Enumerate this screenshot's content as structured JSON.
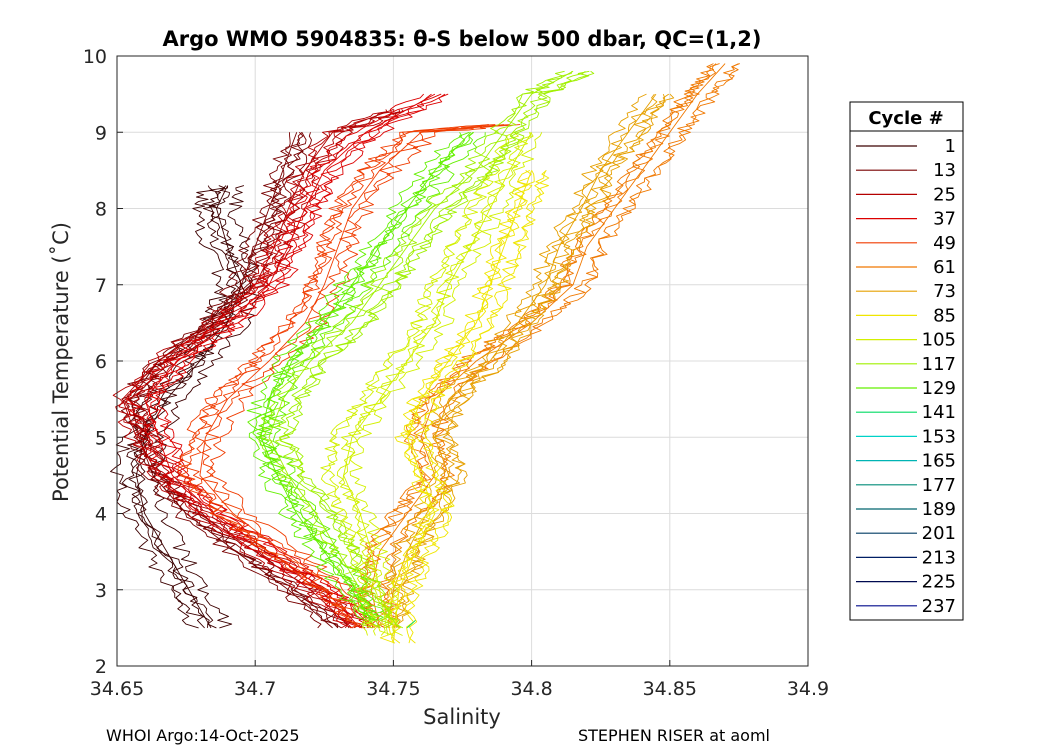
{
  "chart_data": {
    "type": "line",
    "title": "Argo WMO 5904835: θ-S below 500 dbar,  QC=(1,2)",
    "xlabel": "Salinity",
    "ylabel": "Potential Temperature (˚C)",
    "xlim": [
      34.65,
      34.9
    ],
    "ylim": [
      2,
      10
    ],
    "xticks": [
      "34.65",
      "34.7",
      "34.75",
      "34.8",
      "34.85",
      "34.9"
    ],
    "yticks": [
      "2",
      "3",
      "4",
      "5",
      "6",
      "7",
      "8",
      "9",
      "10"
    ],
    "grid": true,
    "legend_title": "Cycle #",
    "legend_position": "right",
    "series": [
      {
        "name": "1",
        "color": "#3c0000",
        "points": [
          [
            34.684,
            2.5
          ],
          [
            34.676,
            3.0
          ],
          [
            34.668,
            3.5
          ],
          [
            34.66,
            4.0
          ],
          [
            34.657,
            4.5
          ],
          [
            34.66,
            5.0
          ],
          [
            34.668,
            5.5
          ],
          [
            34.68,
            6.0
          ],
          [
            34.69,
            6.5
          ],
          [
            34.695,
            7.0
          ],
          [
            34.69,
            7.5
          ],
          [
            34.686,
            8.0
          ],
          [
            34.69,
            8.3
          ]
        ]
      },
      {
        "name": "13",
        "color": "#780000",
        "points": [
          [
            34.728,
            2.5
          ],
          [
            34.712,
            3.0
          ],
          [
            34.693,
            3.5
          ],
          [
            34.675,
            4.0
          ],
          [
            34.663,
            4.5
          ],
          [
            34.658,
            5.0
          ],
          [
            34.655,
            5.5
          ],
          [
            34.665,
            6.0
          ],
          [
            34.683,
            6.5
          ],
          [
            34.695,
            7.0
          ],
          [
            34.7,
            7.5
          ],
          [
            34.705,
            8.0
          ],
          [
            34.71,
            8.5
          ],
          [
            34.715,
            9.0
          ]
        ]
      },
      {
        "name": "25",
        "color": "#b40000",
        "points": [
          [
            34.735,
            2.5
          ],
          [
            34.72,
            3.0
          ],
          [
            34.7,
            3.5
          ],
          [
            34.68,
            4.0
          ],
          [
            34.665,
            4.5
          ],
          [
            34.657,
            5.0
          ],
          [
            34.652,
            5.5
          ],
          [
            34.665,
            6.0
          ],
          [
            34.685,
            6.5
          ],
          [
            34.7,
            7.0
          ],
          [
            34.707,
            7.5
          ],
          [
            34.712,
            8.0
          ],
          [
            34.718,
            8.5
          ],
          [
            34.728,
            9.0
          ],
          [
            34.75,
            9.3
          ]
        ]
      },
      {
        "name": "37",
        "color": "#dc0000",
        "points": [
          [
            34.738,
            2.5
          ],
          [
            34.725,
            3.0
          ],
          [
            34.705,
            3.5
          ],
          [
            34.685,
            4.0
          ],
          [
            34.67,
            4.5
          ],
          [
            34.665,
            5.0
          ],
          [
            34.66,
            5.5
          ],
          [
            34.672,
            6.0
          ],
          [
            34.69,
            6.5
          ],
          [
            34.705,
            7.0
          ],
          [
            34.712,
            7.5
          ],
          [
            34.718,
            8.0
          ],
          [
            34.725,
            8.5
          ],
          [
            34.74,
            9.0
          ],
          [
            34.765,
            9.5
          ]
        ]
      },
      {
        "name": "49",
        "color": "#f03c00",
        "points": [
          [
            34.742,
            2.5
          ],
          [
            34.73,
            3.0
          ],
          [
            34.71,
            3.5
          ],
          [
            34.692,
            4.0
          ],
          [
            34.68,
            4.5
          ],
          [
            34.682,
            5.0
          ],
          [
            34.69,
            5.5
          ],
          [
            34.705,
            6.0
          ],
          [
            34.718,
            6.5
          ],
          [
            34.725,
            7.0
          ],
          [
            34.73,
            7.5
          ],
          [
            34.735,
            8.0
          ],
          [
            34.745,
            8.5
          ],
          [
            34.76,
            9.0
          ],
          [
            34.79,
            9.1
          ]
        ]
      },
      {
        "name": "61",
        "color": "#f07800",
        "points": [
          [
            34.745,
            2.5
          ],
          [
            34.742,
            3.0
          ],
          [
            34.745,
            3.5
          ],
          [
            34.755,
            4.0
          ],
          [
            34.765,
            4.5
          ],
          [
            34.76,
            5.0
          ],
          [
            34.765,
            5.5
          ],
          [
            34.78,
            6.0
          ],
          [
            34.8,
            6.5
          ],
          [
            34.815,
            7.0
          ],
          [
            34.82,
            7.5
          ],
          [
            34.83,
            8.0
          ],
          [
            34.84,
            8.5
          ],
          [
            34.85,
            9.0
          ],
          [
            34.86,
            9.5
          ],
          [
            34.87,
            9.9
          ]
        ]
      },
      {
        "name": "73",
        "color": "#e6a000",
        "points": [
          [
            34.748,
            2.5
          ],
          [
            34.75,
            3.0
          ],
          [
            34.755,
            3.5
          ],
          [
            34.762,
            4.0
          ],
          [
            34.77,
            4.5
          ],
          [
            34.765,
            5.0
          ],
          [
            34.77,
            5.5
          ],
          [
            34.785,
            6.0
          ],
          [
            34.795,
            6.5
          ],
          [
            34.805,
            7.0
          ],
          [
            34.81,
            7.5
          ],
          [
            34.818,
            8.0
          ],
          [
            34.825,
            8.5
          ],
          [
            34.835,
            9.0
          ],
          [
            34.845,
            9.5
          ]
        ]
      },
      {
        "name": "85",
        "color": "#f0e600",
        "points": [
          [
            34.75,
            2.3
          ],
          [
            34.752,
            3.0
          ],
          [
            34.758,
            3.5
          ],
          [
            34.765,
            4.0
          ],
          [
            34.76,
            4.5
          ],
          [
            34.755,
            5.0
          ],
          [
            34.76,
            5.5
          ],
          [
            34.77,
            6.0
          ],
          [
            34.78,
            6.5
          ],
          [
            34.785,
            7.0
          ],
          [
            34.79,
            7.5
          ],
          [
            34.795,
            8.0
          ],
          [
            34.8,
            8.5
          ]
        ]
      },
      {
        "name": "105",
        "color": "#d2f000",
        "points": [
          [
            34.748,
            2.4
          ],
          [
            34.745,
            3.0
          ],
          [
            34.742,
            3.5
          ],
          [
            34.738,
            4.0
          ],
          [
            34.732,
            4.5
          ],
          [
            34.735,
            5.0
          ],
          [
            34.745,
            5.5
          ],
          [
            34.755,
            6.0
          ],
          [
            34.765,
            6.5
          ],
          [
            34.77,
            7.0
          ],
          [
            34.778,
            7.5
          ],
          [
            34.785,
            8.0
          ],
          [
            34.792,
            8.5
          ],
          [
            34.8,
            9.0
          ]
        ]
      },
      {
        "name": "117",
        "color": "#a0f000",
        "points": [
          [
            34.745,
            2.5
          ],
          [
            34.738,
            3.0
          ],
          [
            34.73,
            3.5
          ],
          [
            34.722,
            4.0
          ],
          [
            34.712,
            4.5
          ],
          [
            34.705,
            5.0
          ],
          [
            34.71,
            5.5
          ],
          [
            34.72,
            6.0
          ],
          [
            34.735,
            6.5
          ],
          [
            34.745,
            7.0
          ],
          [
            34.755,
            7.5
          ],
          [
            34.765,
            8.0
          ],
          [
            34.78,
            8.5
          ],
          [
            34.79,
            9.0
          ],
          [
            34.8,
            9.5
          ],
          [
            34.815,
            9.8
          ]
        ]
      },
      {
        "name": "129",
        "color": "#64f000",
        "points": [
          [
            34.742,
            2.6
          ],
          [
            34.735,
            3.0
          ],
          [
            34.725,
            3.5
          ],
          [
            34.715,
            4.0
          ],
          [
            34.708,
            4.5
          ],
          [
            34.702,
            5.0
          ],
          [
            34.705,
            5.5
          ],
          [
            34.712,
            6.0
          ],
          [
            34.725,
            6.5
          ],
          [
            34.735,
            7.0
          ],
          [
            34.745,
            7.5
          ],
          [
            34.755,
            8.0
          ],
          [
            34.765,
            8.5
          ],
          [
            34.778,
            9.0
          ]
        ]
      },
      {
        "name": "141",
        "color": "#00dc64",
        "points": [
          [
            34.755,
            2.5
          ],
          [
            34.758,
            2.6
          ]
        ]
      },
      {
        "name": "153",
        "color": "#00d2c8",
        "points": []
      },
      {
        "name": "165",
        "color": "#00b4b4",
        "points": []
      },
      {
        "name": "177",
        "color": "#008c78",
        "points": []
      },
      {
        "name": "189",
        "color": "#00646e",
        "points": []
      },
      {
        "name": "201",
        "color": "#003c64",
        "points": []
      },
      {
        "name": "213",
        "color": "#001e64",
        "points": []
      },
      {
        "name": "225",
        "color": "#000a50",
        "points": []
      },
      {
        "name": "237",
        "color": "#000a8c",
        "points": []
      }
    ]
  },
  "footer": {
    "left": "WHOI Argo:14-Oct-2025",
    "right": "STEPHEN RISER at aoml"
  }
}
